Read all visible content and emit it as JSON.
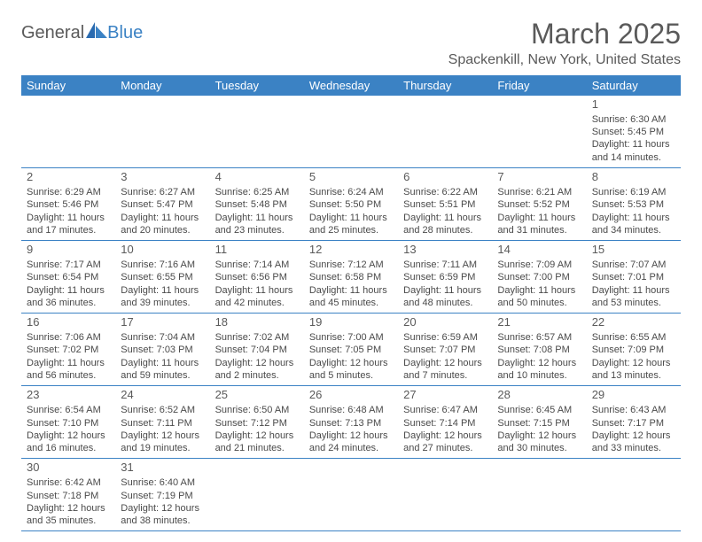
{
  "logo": {
    "word1": "General",
    "word2": "Blue"
  },
  "title": "March 2025",
  "subtitle": "Spackenkill, New York, United States",
  "weekdays": [
    "Sunday",
    "Monday",
    "Tuesday",
    "Wednesday",
    "Thursday",
    "Friday",
    "Saturday"
  ],
  "colors": {
    "header_bg": "#3b82c4",
    "header_fg": "#ffffff",
    "divider": "#3b82c4",
    "text": "#4a4a4a",
    "page_bg": "#ffffff"
  },
  "grid": {
    "first_weekday_index": 6,
    "days": [
      {
        "n": 1,
        "sunrise": "6:30 AM",
        "sunset": "5:45 PM",
        "daylight": "11 hours and 14 minutes."
      },
      {
        "n": 2,
        "sunrise": "6:29 AM",
        "sunset": "5:46 PM",
        "daylight": "11 hours and 17 minutes."
      },
      {
        "n": 3,
        "sunrise": "6:27 AM",
        "sunset": "5:47 PM",
        "daylight": "11 hours and 20 minutes."
      },
      {
        "n": 4,
        "sunrise": "6:25 AM",
        "sunset": "5:48 PM",
        "daylight": "11 hours and 23 minutes."
      },
      {
        "n": 5,
        "sunrise": "6:24 AM",
        "sunset": "5:50 PM",
        "daylight": "11 hours and 25 minutes."
      },
      {
        "n": 6,
        "sunrise": "6:22 AM",
        "sunset": "5:51 PM",
        "daylight": "11 hours and 28 minutes."
      },
      {
        "n": 7,
        "sunrise": "6:21 AM",
        "sunset": "5:52 PM",
        "daylight": "11 hours and 31 minutes."
      },
      {
        "n": 8,
        "sunrise": "6:19 AM",
        "sunset": "5:53 PM",
        "daylight": "11 hours and 34 minutes."
      },
      {
        "n": 9,
        "sunrise": "7:17 AM",
        "sunset": "6:54 PM",
        "daylight": "11 hours and 36 minutes."
      },
      {
        "n": 10,
        "sunrise": "7:16 AM",
        "sunset": "6:55 PM",
        "daylight": "11 hours and 39 minutes."
      },
      {
        "n": 11,
        "sunrise": "7:14 AM",
        "sunset": "6:56 PM",
        "daylight": "11 hours and 42 minutes."
      },
      {
        "n": 12,
        "sunrise": "7:12 AM",
        "sunset": "6:58 PM",
        "daylight": "11 hours and 45 minutes."
      },
      {
        "n": 13,
        "sunrise": "7:11 AM",
        "sunset": "6:59 PM",
        "daylight": "11 hours and 48 minutes."
      },
      {
        "n": 14,
        "sunrise": "7:09 AM",
        "sunset": "7:00 PM",
        "daylight": "11 hours and 50 minutes."
      },
      {
        "n": 15,
        "sunrise": "7:07 AM",
        "sunset": "7:01 PM",
        "daylight": "11 hours and 53 minutes."
      },
      {
        "n": 16,
        "sunrise": "7:06 AM",
        "sunset": "7:02 PM",
        "daylight": "11 hours and 56 minutes."
      },
      {
        "n": 17,
        "sunrise": "7:04 AM",
        "sunset": "7:03 PM",
        "daylight": "11 hours and 59 minutes."
      },
      {
        "n": 18,
        "sunrise": "7:02 AM",
        "sunset": "7:04 PM",
        "daylight": "12 hours and 2 minutes."
      },
      {
        "n": 19,
        "sunrise": "7:00 AM",
        "sunset": "7:05 PM",
        "daylight": "12 hours and 5 minutes."
      },
      {
        "n": 20,
        "sunrise": "6:59 AM",
        "sunset": "7:07 PM",
        "daylight": "12 hours and 7 minutes."
      },
      {
        "n": 21,
        "sunrise": "6:57 AM",
        "sunset": "7:08 PM",
        "daylight": "12 hours and 10 minutes."
      },
      {
        "n": 22,
        "sunrise": "6:55 AM",
        "sunset": "7:09 PM",
        "daylight": "12 hours and 13 minutes."
      },
      {
        "n": 23,
        "sunrise": "6:54 AM",
        "sunset": "7:10 PM",
        "daylight": "12 hours and 16 minutes."
      },
      {
        "n": 24,
        "sunrise": "6:52 AM",
        "sunset": "7:11 PM",
        "daylight": "12 hours and 19 minutes."
      },
      {
        "n": 25,
        "sunrise": "6:50 AM",
        "sunset": "7:12 PM",
        "daylight": "12 hours and 21 minutes."
      },
      {
        "n": 26,
        "sunrise": "6:48 AM",
        "sunset": "7:13 PM",
        "daylight": "12 hours and 24 minutes."
      },
      {
        "n": 27,
        "sunrise": "6:47 AM",
        "sunset": "7:14 PM",
        "daylight": "12 hours and 27 minutes."
      },
      {
        "n": 28,
        "sunrise": "6:45 AM",
        "sunset": "7:15 PM",
        "daylight": "12 hours and 30 minutes."
      },
      {
        "n": 29,
        "sunrise": "6:43 AM",
        "sunset": "7:17 PM",
        "daylight": "12 hours and 33 minutes."
      },
      {
        "n": 30,
        "sunrise": "6:42 AM",
        "sunset": "7:18 PM",
        "daylight": "12 hours and 35 minutes."
      },
      {
        "n": 31,
        "sunrise": "6:40 AM",
        "sunset": "7:19 PM",
        "daylight": "12 hours and 38 minutes."
      }
    ]
  },
  "labels": {
    "sunrise": "Sunrise: ",
    "sunset": "Sunset: ",
    "daylight": "Daylight: "
  }
}
